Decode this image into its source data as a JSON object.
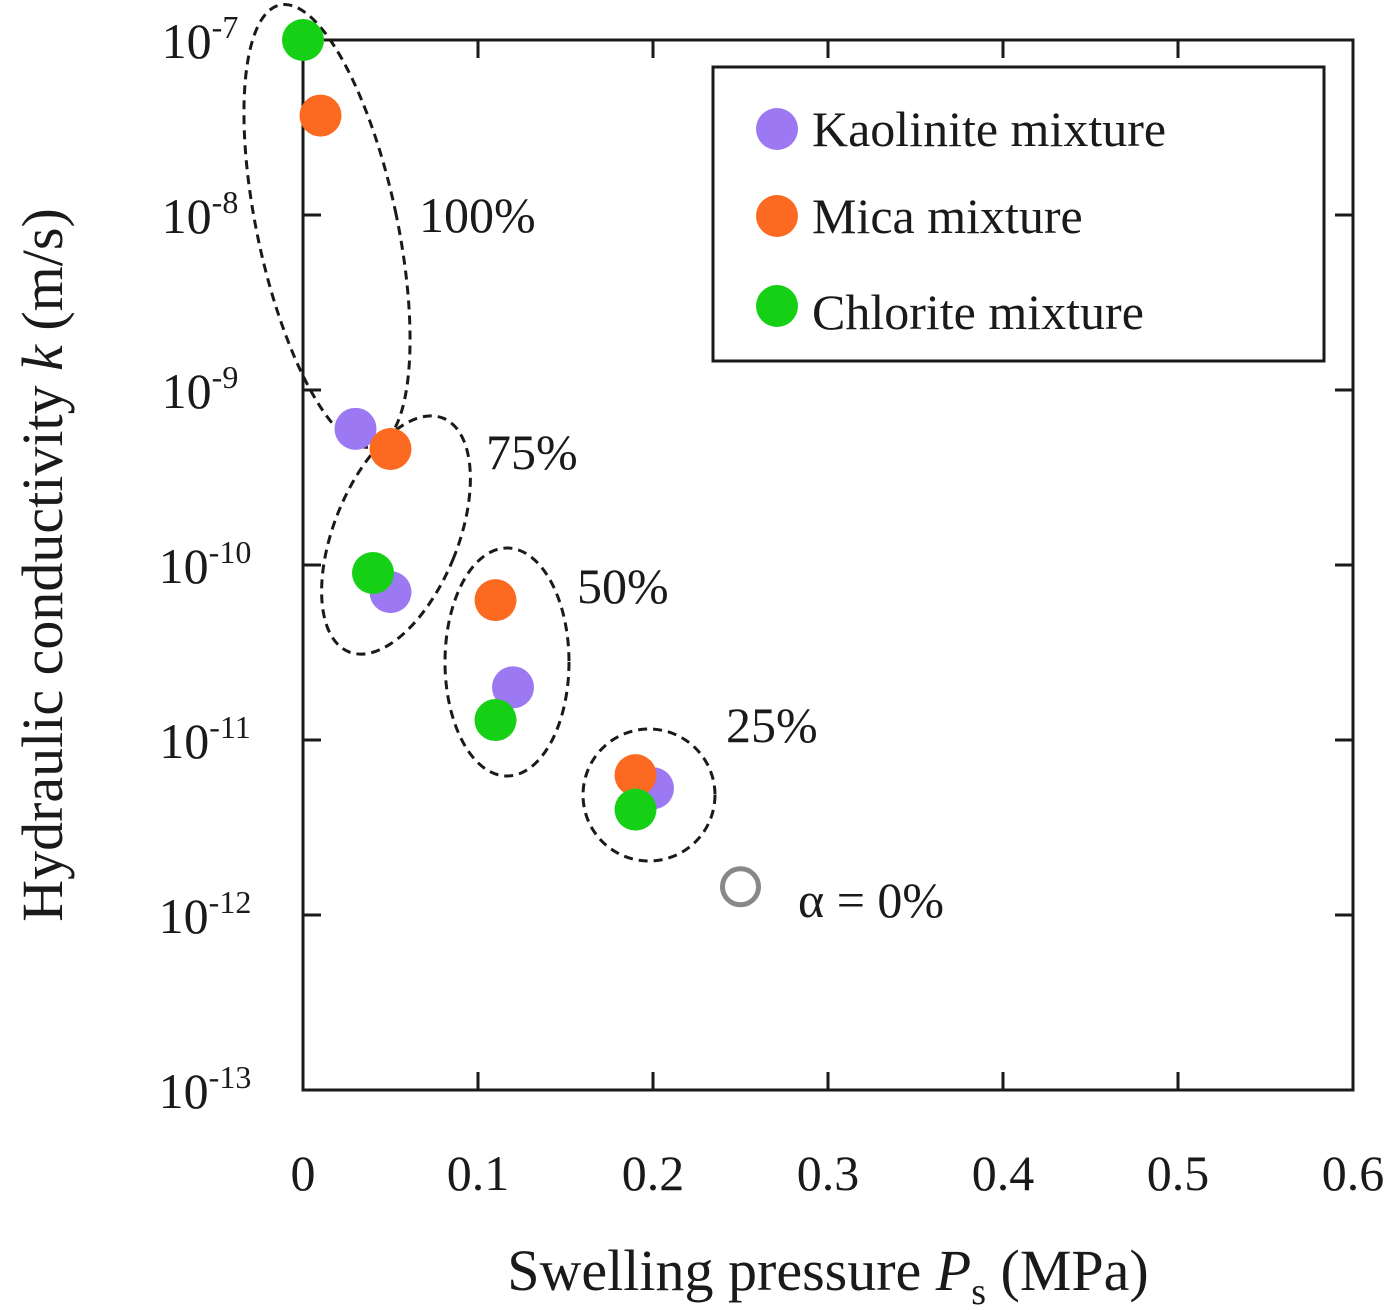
{
  "chart_data": {
    "type": "scatter",
    "xlabel": {
      "text": "Swelling pressure ",
      "var": "P",
      "sub": "s",
      "unit": " (MPa)"
    },
    "ylabel": {
      "text": "Hydraulic conductivity ",
      "var": "k",
      "unit": " (m/s)"
    },
    "xlim": [
      0,
      0.6
    ],
    "ylim_log10": [
      -13,
      -7
    ],
    "yscale": "log",
    "x_ticks": [
      "0",
      "0.1",
      "0.2",
      "0.3",
      "0.4",
      "0.5",
      "0.6"
    ],
    "y_ticks": [
      {
        "base": "10",
        "exp": "-7"
      },
      {
        "base": "10",
        "exp": "-8"
      },
      {
        "base": "10",
        "exp": "-9"
      },
      {
        "base": "10",
        "exp": "-10"
      },
      {
        "base": "10",
        "exp": "-11"
      },
      {
        "base": "10",
        "exp": "-12"
      },
      {
        "base": "10",
        "exp": "-13"
      }
    ],
    "series": [
      {
        "name": "Kaolinite mixture",
        "color": "#9c79f2",
        "points": [
          [
            0.03,
            6e-10
          ],
          [
            0.05,
            7e-11
          ],
          [
            0.12,
            2e-11
          ],
          [
            0.2,
            5.3e-12
          ]
        ]
      },
      {
        "name": "Mica mixture",
        "color": "#fc6a21",
        "points": [
          [
            0.01,
            3.7e-08
          ],
          [
            0.05,
            4.6e-10
          ],
          [
            0.11,
            6.3e-11
          ],
          [
            0.19,
            6.3e-12
          ]
        ]
      },
      {
        "name": "Chlorite mixture",
        "color": "#16d016",
        "points": [
          [
            0.0,
            1e-07
          ],
          [
            0.04,
            9e-11
          ],
          [
            0.11,
            1.3e-11
          ],
          [
            0.19,
            4e-12
          ]
        ]
      }
    ],
    "reference_point": {
      "label": "α = 0%",
      "x": 0.25,
      "y": 1.45e-12,
      "color": "#888888"
    },
    "groups": [
      {
        "label": "100%"
      },
      {
        "label": "75%"
      },
      {
        "label": "50%"
      },
      {
        "label": "25%"
      }
    ],
    "legend": {
      "position": "top-right"
    }
  }
}
